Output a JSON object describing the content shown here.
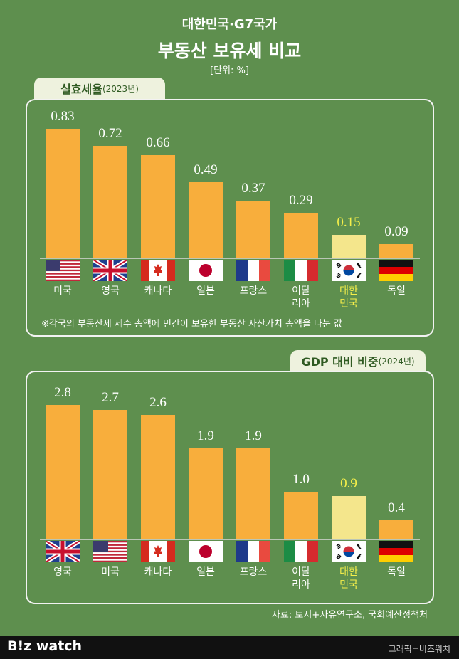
{
  "header": {
    "title": "대한민국·G7국가",
    "subtitle": "부동산 보유세 비교",
    "unit": "[단위: %]"
  },
  "chart_data": [
    {
      "type": "bar",
      "title": "실효세율",
      "title_note": "(2023년)",
      "categories": [
        "미국",
        "영국",
        "캐나다",
        "일본",
        "프랑스",
        "이탈\n리아",
        "대한\n민국",
        "독일"
      ],
      "values": [
        0.83,
        0.72,
        0.66,
        0.49,
        0.37,
        0.29,
        0.15,
        0.09
      ],
      "colors": [
        "#f8ae3c",
        "#f8ae3c",
        "#f8ae3c",
        "#f8ae3c",
        "#f8ae3c",
        "#f8ae3c",
        "#f4e68c",
        "#f8ae3c"
      ],
      "label_colors": [
        "#ffffff",
        "#ffffff",
        "#ffffff",
        "#ffffff",
        "#ffffff",
        "#ffffff",
        "#f5ef4a",
        "#ffffff"
      ],
      "footnote": "※각국의 부동산세 세수 총액에 민간이 보유한 부동산 자산가치 총액을 나눈 값"
    },
    {
      "type": "bar",
      "title": "GDP 대비 비중",
      "title_note": "(2024년)",
      "categories": [
        "영국",
        "미국",
        "캐나다",
        "일본",
        "프랑스",
        "이탈\n리아",
        "대한\n민국",
        "독일"
      ],
      "values": [
        2.8,
        2.7,
        2.6,
        1.9,
        1.9,
        1.0,
        0.9,
        0.4
      ],
      "value_labels": [
        "2.8",
        "2.7",
        "2.6",
        "1.9",
        "1.9",
        "1.0",
        "0.9",
        "0.4"
      ],
      "colors": [
        "#f8ae3c",
        "#f8ae3c",
        "#f8ae3c",
        "#f8ae3c",
        "#f8ae3c",
        "#f8ae3c",
        "#f4e68c",
        "#f8ae3c"
      ],
      "label_colors": [
        "#ffffff",
        "#ffffff",
        "#ffffff",
        "#ffffff",
        "#ffffff",
        "#ffffff",
        "#f5ef4a",
        "#ffffff"
      ]
    }
  ],
  "source": "자료: 토지+자유연구소, 국회예산정책처",
  "footer": {
    "logo": "B!z watch",
    "credit": "그래픽=비즈워치"
  }
}
